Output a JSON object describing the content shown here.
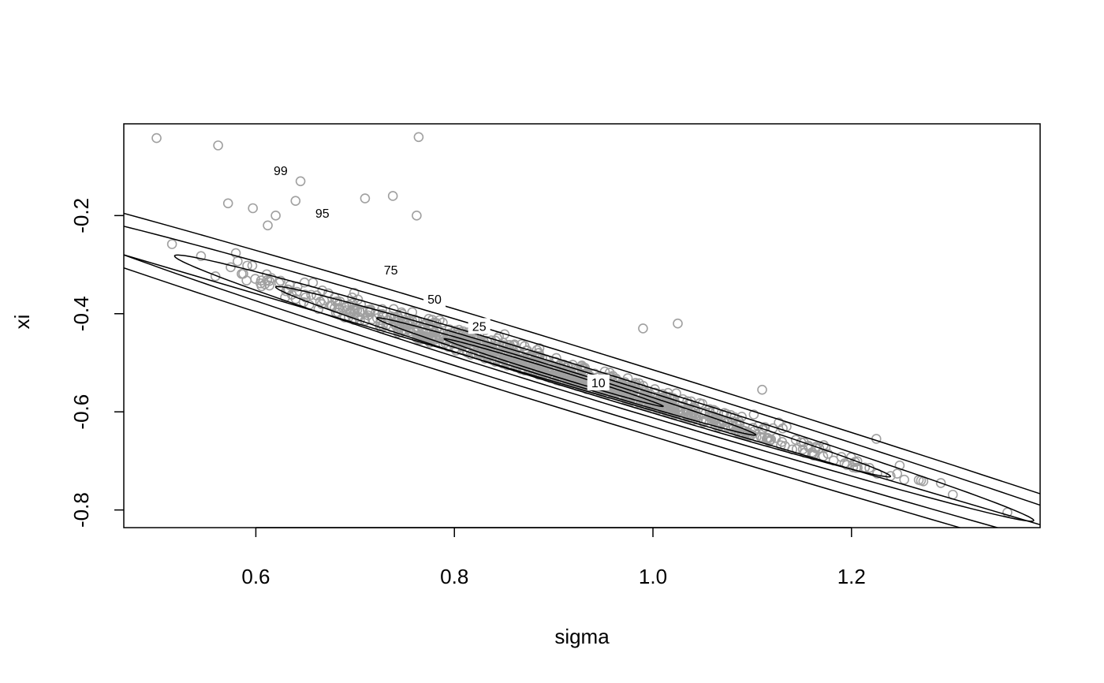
{
  "chart_data": {
    "type": "scatter",
    "title": "",
    "xlabel": "sigma",
    "ylabel": "xi",
    "xlim": [
      0.467,
      1.39
    ],
    "ylim": [
      -0.836,
      -0.013
    ],
    "x_ticks": [
      0.6,
      0.8,
      1.0,
      1.2
    ],
    "x_tick_labels": [
      "0.6",
      "0.8",
      "1.0",
      "1.2"
    ],
    "y_ticks": [
      -0.8,
      -0.6,
      -0.4,
      -0.2
    ],
    "y_tick_labels": [
      "-0.8",
      "-0.6",
      "-0.4",
      "-0.2"
    ],
    "grid": false,
    "point_color": "#a0a0a0",
    "line_color": "#000000",
    "boundary_line": {
      "x": [
        0.467,
        1.39
      ],
      "y": [
        -0.28,
        -0.83
      ]
    },
    "contour_center": {
      "x": 0.9,
      "y": -0.52
    },
    "contour_direction": {
      "dx": 0.4,
      "dy": -0.25
    },
    "contours": [
      {
        "level": "99",
        "a_pos": 1.09,
        "a_neg": 0.88,
        "b": 0.058,
        "label_x": 0.625,
        "label_y": -0.108
      },
      {
        "level": "95",
        "a_pos": 0.84,
        "a_neg": 0.64,
        "b": 0.041,
        "label_x": 0.667,
        "label_y": -0.195
      },
      {
        "level": "75",
        "a_pos": 0.57,
        "a_neg": 0.45,
        "b": 0.026,
        "label_x": 0.736,
        "label_y": -0.31
      },
      {
        "level": "50",
        "a_pos": 0.4,
        "a_neg": 0.33,
        "b": 0.018,
        "label_x": 0.78,
        "label_y": -0.37
      },
      {
        "level": "25",
        "a_pos": 0.24,
        "a_neg": 0.21,
        "b": 0.011,
        "label_x": 0.825,
        "label_y": -0.425
      },
      {
        "level": "10",
        "a_pos": 0.13,
        "a_neg": 0.13,
        "b": 0.006,
        "label_x": 0.945,
        "label_y": -0.54
      }
    ],
    "outlier_points": [
      {
        "x": 0.5,
        "y": -0.042
      },
      {
        "x": 0.562,
        "y": -0.057
      },
      {
        "x": 0.764,
        "y": -0.04
      },
      {
        "x": 0.572,
        "y": -0.175
      },
      {
        "x": 0.597,
        "y": -0.185
      },
      {
        "x": 0.612,
        "y": -0.22
      },
      {
        "x": 0.62,
        "y": -0.2
      },
      {
        "x": 0.64,
        "y": -0.17
      },
      {
        "x": 0.645,
        "y": -0.13
      },
      {
        "x": 0.71,
        "y": -0.165
      },
      {
        "x": 0.738,
        "y": -0.16
      },
      {
        "x": 0.762,
        "y": -0.2
      },
      {
        "x": 0.682,
        "y": -0.375
      },
      {
        "x": 0.99,
        "y": -0.43
      },
      {
        "x": 1.025,
        "y": -0.42
      },
      {
        "x": 1.11,
        "y": -0.555
      },
      {
        "x": 1.225,
        "y": -0.655
      },
      {
        "x": 1.246,
        "y": -0.726
      },
      {
        "x": 1.27,
        "y": -0.74
      },
      {
        "x": 1.29,
        "y": -0.745
      },
      {
        "x": 1.357,
        "y": -0.805
      }
    ]
  }
}
